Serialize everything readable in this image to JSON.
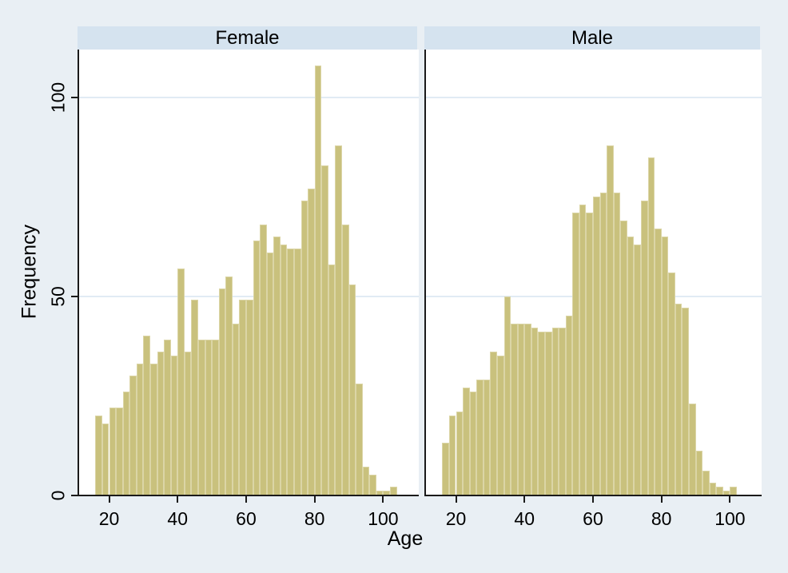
{
  "figure": {
    "background": "#e9eff4",
    "panel_header_color": "#d5e3ef",
    "plot_background": "#ffffff",
    "bar_fill": "#c9c17d",
    "bar_edge": "#dbd5a6",
    "grid_color": "#e1ebf4",
    "axis_color": "#1a1a1a",
    "text_color": "#000000"
  },
  "chart_data": {
    "type": "bar",
    "subtype": "histogram-by-group",
    "title": "",
    "xlabel": "Age",
    "ylabel": "Frequency",
    "bin_width": 2,
    "x_ticks": [
      20,
      40,
      60,
      80,
      100
    ],
    "y_ticks": [
      0,
      50,
      100
    ],
    "xlim": [
      11.5,
      110
    ],
    "ylim": [
      0,
      112
    ],
    "grid": "horizontal-only",
    "legend_position": "none",
    "panels": [
      {
        "title": "Female",
        "bin_start": [
          16,
          18,
          20,
          22,
          24,
          26,
          28,
          30,
          32,
          34,
          36,
          38,
          40,
          42,
          44,
          46,
          48,
          50,
          52,
          54,
          56,
          58,
          60,
          62,
          64,
          66,
          68,
          70,
          72,
          74,
          76,
          78,
          80,
          82,
          84,
          86,
          88,
          90,
          92,
          94,
          96,
          98,
          100,
          102
        ],
        "frequencies": [
          20,
          18,
          22,
          22,
          26,
          30,
          33,
          40,
          33,
          36,
          39,
          35,
          57,
          36,
          49,
          39,
          39,
          39,
          52,
          55,
          43,
          49,
          49,
          64,
          68,
          61,
          65,
          63,
          62,
          62,
          74,
          77,
          108,
          83,
          58,
          88,
          68,
          53,
          28,
          7,
          5,
          1,
          1,
          2
        ]
      },
      {
        "title": "Male",
        "bin_start": [
          16,
          18,
          20,
          22,
          24,
          26,
          28,
          30,
          32,
          34,
          36,
          38,
          40,
          42,
          44,
          46,
          48,
          50,
          52,
          54,
          56,
          58,
          60,
          62,
          64,
          66,
          68,
          70,
          72,
          74,
          76,
          78,
          80,
          82,
          84,
          86,
          88,
          90,
          92,
          94,
          96,
          98,
          100
        ],
        "frequencies": [
          13,
          20,
          21,
          27,
          26,
          29,
          29,
          36,
          35,
          50,
          43,
          43,
          43,
          42,
          41,
          41,
          42,
          42,
          45,
          71,
          73,
          71,
          75,
          76,
          88,
          76,
          69,
          65,
          63,
          74,
          85,
          67,
          65,
          56,
          48,
          47,
          23,
          11,
          6,
          3,
          2,
          1,
          2
        ]
      }
    ]
  }
}
